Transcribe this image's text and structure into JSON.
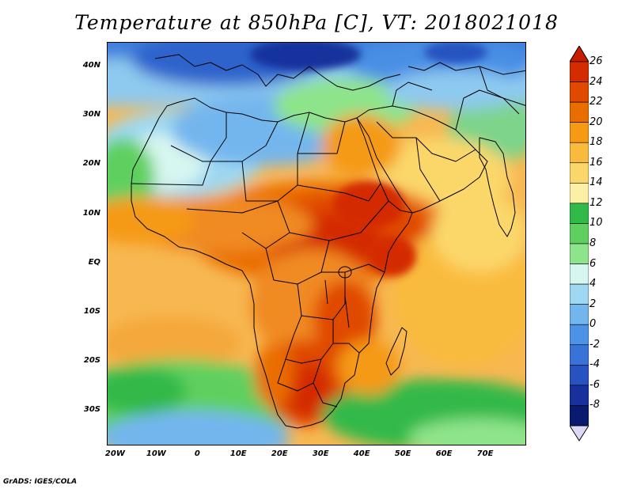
{
  "title": "Temperature at 850hPa [C], VT: 2018021018",
  "credit": "GrADS: IGES/COLA",
  "map": {
    "lon_range": [
      -22,
      80
    ],
    "lat_range": [
      -37,
      45
    ],
    "lat_labels": [
      "40N",
      "30N",
      "20N",
      "10N",
      "EQ",
      "10S",
      "20S",
      "30S"
    ],
    "lat_values": [
      40,
      30,
      20,
      10,
      0,
      -10,
      -20,
      -30
    ],
    "lon_labels": [
      "20W",
      "10W",
      "0",
      "10E",
      "20E",
      "30E",
      "40E",
      "50E",
      "60E",
      "70E"
    ],
    "lon_values": [
      -20,
      -10,
      0,
      10,
      20,
      30,
      40,
      50,
      60,
      70
    ]
  },
  "colorbar": {
    "labels": [
      "26",
      "24",
      "22",
      "20",
      "18",
      "16",
      "14",
      "12",
      "10",
      "8",
      "6",
      "4",
      "2",
      "0",
      "-2",
      "-4",
      "-6",
      "-8"
    ],
    "colors_top_to_bottom": [
      "#d42c00",
      "#e04a00",
      "#ea6d00",
      "#f59a12",
      "#f9bb3e",
      "#fbd76a",
      "#fdf0a6",
      "#31b94a",
      "#5fd05f",
      "#8ee48a",
      "#d7f6f0",
      "#9fd8f2",
      "#73b6ee",
      "#4c92e6",
      "#3a73d8",
      "#2852c0",
      "#16309c",
      "#0a1a6e"
    ],
    "top_arrow_color": "#c81e00",
    "bottom_arrow_color": "#dcd9f7"
  },
  "palette": {
    "ocean_south": "#4caa4c",
    "ocean_mid": "#f5a83a",
    "med": "#4c8fe4"
  }
}
